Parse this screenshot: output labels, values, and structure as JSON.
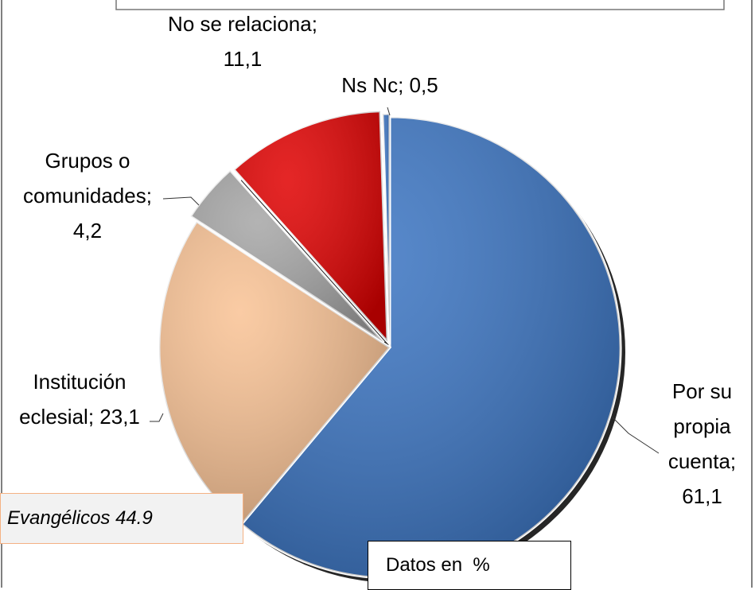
{
  "chart_data": {
    "type": "pie",
    "categories": [
      "Por su propia cuenta",
      "Institución eclesial",
      "Grupos o comunidades",
      "No se relaciona",
      "Ns Nc"
    ],
    "values": [
      61.1,
      23.1,
      4.2,
      11.1,
      0.5
    ],
    "value_labels": [
      "61,1",
      "23,1",
      "4,2",
      "11,1",
      "0,5"
    ],
    "label_separator": ";",
    "colors": [
      "#3a74c2",
      "#f9c294",
      "#a6a6a6",
      "#e00000",
      "#3a74c2"
    ],
    "annotations": [
      "Evangélicos 44.9",
      "Datos en  %"
    ]
  }
}
